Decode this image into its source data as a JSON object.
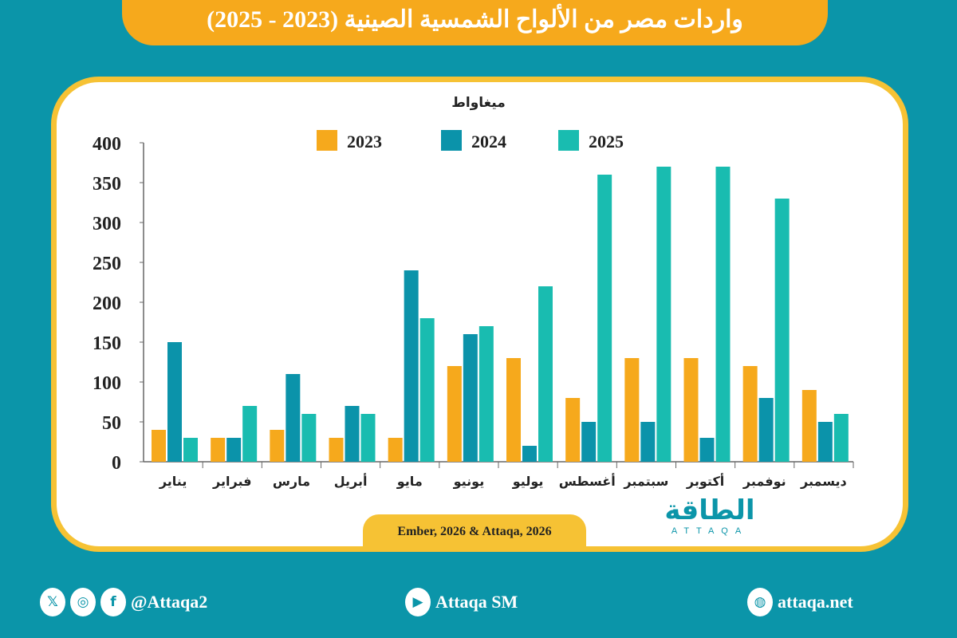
{
  "title": "واردات مصر من الألواح الشمسية الصينية (2023 - 2025)",
  "source": "Ember, 2026 & Attaqa, 2026",
  "logo": {
    "arabic": "الطاقة",
    "latin": "ATTAQA"
  },
  "footer": {
    "social_handle": "@Attaqa2",
    "youtube": "Attaqa SM",
    "website": "attaqa.net",
    "icons": [
      "x-icon",
      "instagram-icon",
      "facebook-icon",
      "youtube-icon",
      "globe-icon"
    ]
  },
  "chart_data": {
    "type": "bar",
    "unit_label": "ميغاواط",
    "categories": [
      "يناير",
      "فبراير",
      "مارس",
      "أبريل",
      "مايو",
      "يونيو",
      "يوليو",
      "أغسطس",
      "سبتمبر",
      "أكتوبر",
      "نوفمبر",
      "ديسمبر"
    ],
    "series": [
      {
        "name": "2023",
        "color": "#f6a91c",
        "values": [
          40,
          30,
          40,
          30,
          30,
          120,
          130,
          80,
          130,
          130,
          120,
          90
        ]
      },
      {
        "name": "2024",
        "color": "#0b93aa",
        "values": [
          150,
          30,
          110,
          70,
          240,
          160,
          20,
          50,
          50,
          30,
          80,
          50
        ]
      },
      {
        "name": "2025",
        "color": "#19bcb0",
        "values": [
          30,
          70,
          60,
          60,
          180,
          170,
          220,
          360,
          370,
          370,
          330,
          60
        ]
      }
    ],
    "ylim": [
      0,
      400
    ],
    "yticks": [
      0,
      50,
      100,
      150,
      200,
      250,
      300,
      350,
      400
    ],
    "legend": "top",
    "grid": false
  }
}
